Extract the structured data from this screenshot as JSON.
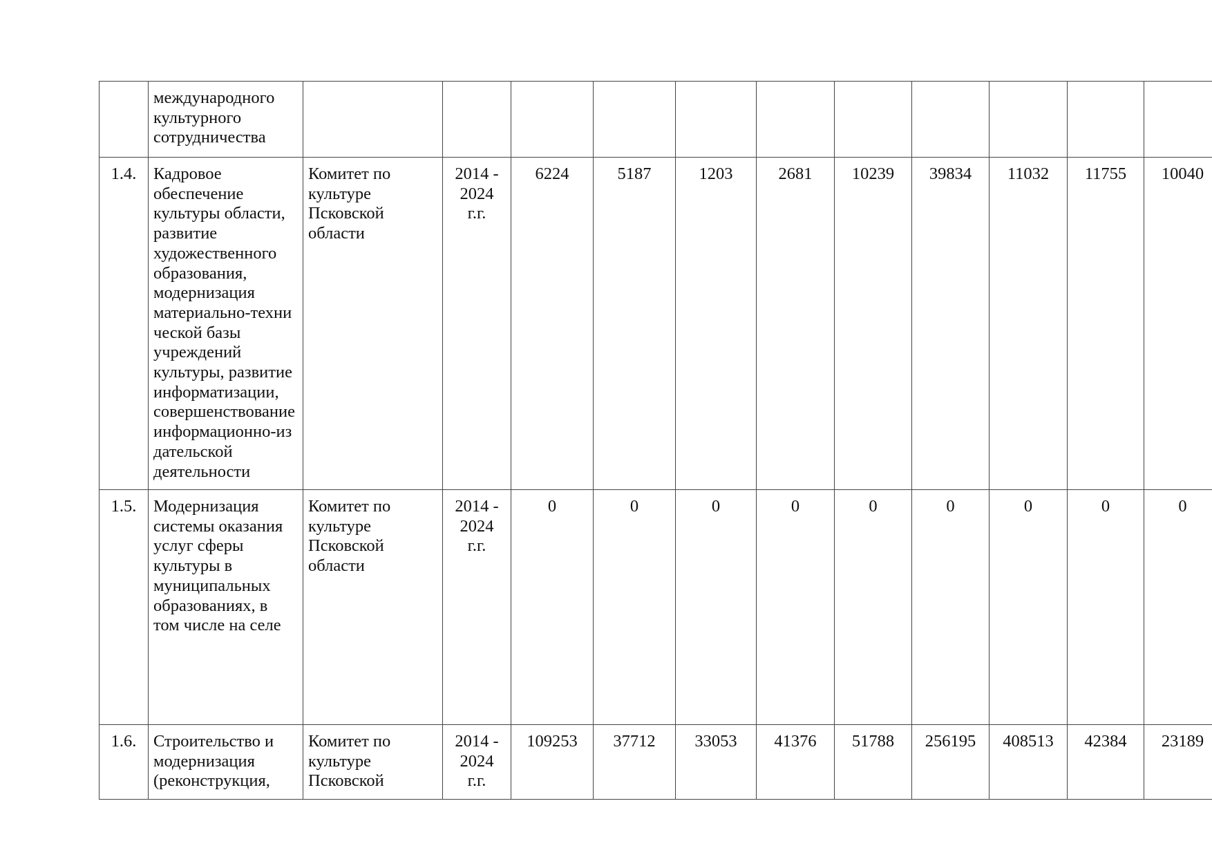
{
  "rows": [
    {
      "number": "",
      "name": "международного\nкультурного\nсотрудничества",
      "executor": "",
      "period": "",
      "values": [
        "",
        "",
        "",
        "",
        "",
        "",
        "",
        "",
        ""
      ]
    },
    {
      "number": "1.4.",
      "name": "Кадровое\nобеспечение\nкультуры области,\nразвитие\nхудожественного\nобразования,\nмодернизация\nматериально-техни\nческой базы\nучреждений\nкультуры, развитие\nинформатизации,\nсовершенствование\nинформационно-из\nдательской\nдеятельности",
      "executor": "Комитет по\nкультуре\nПсковской\nобласти",
      "period": "2014 -\n2024\nг.г.",
      "values": [
        "6224",
        "5187",
        "1203",
        "2681",
        "10239",
        "39834",
        "11032",
        "11755",
        "10040"
      ]
    },
    {
      "number": "1.5.",
      "name": "Модернизация\nсистемы оказания\nуслуг сферы\nкультуры в\nмуниципальных\nобразованиях, в\nтом числе на селе",
      "executor": "Комитет по\nкультуре\nПсковской\nобласти",
      "period": "2014 -\n2024\nг.г.",
      "values": [
        "0",
        "0",
        "0",
        "0",
        "0",
        "0",
        "0",
        "0",
        "0"
      ]
    },
    {
      "number": "1.6.",
      "name": "Строительство и\nмодернизация\n(реконструкция,",
      "executor": "Комитет по\nкультуре\nПсковской",
      "period": "2014 -\n2024\nг.г.",
      "values": [
        "109253",
        "37712",
        "33053",
        "41376",
        "51788",
        "256195",
        "408513",
        "42384",
        "23189"
      ]
    }
  ]
}
